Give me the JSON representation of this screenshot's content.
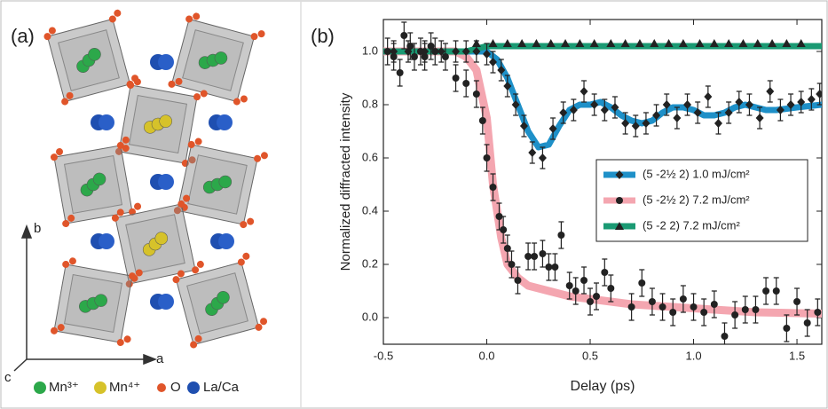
{
  "panel_a": {
    "label": "(a)",
    "axis_b": "b",
    "axis_a": "a",
    "axis_c": "c",
    "legend": [
      "Mn³⁺",
      "Mn⁴⁺",
      "O",
      "La/Ca"
    ]
  },
  "chart_data": {
    "type": "line",
    "panel_label": "(b)",
    "x_label": "Delay (ps)",
    "y_label": "Normalized diffracted intensity",
    "xlim": [
      -0.5,
      1.62
    ],
    "ylim": [
      -0.1,
      1.12
    ],
    "xticks": [
      -0.5,
      {
        "value": 0,
        "label": "0.0"
      },
      0.5,
      {
        "value": 1,
        "label": "1.0"
      },
      1.5
    ],
    "yticks": [
      {
        "value": 0,
        "label": "0.0"
      },
      0.2,
      0.4,
      0.6,
      0.8,
      {
        "value": 1,
        "label": "1.0"
      }
    ],
    "legend": "right",
    "series": [
      {
        "name": "(5 -2½ 2) 1.0 mJ/cm²",
        "color": "#1e90c8",
        "marker": "diamond",
        "x": [
          -0.45,
          -0.38,
          -0.3,
          -0.22,
          -0.15,
          -0.1,
          -0.05,
          0.0,
          0.03,
          0.07,
          0.1,
          0.14,
          0.18,
          0.22,
          0.27,
          0.32,
          0.37,
          0.42,
          0.47,
          0.52,
          0.57,
          0.62,
          0.67,
          0.72,
          0.77,
          0.82,
          0.87,
          0.92,
          0.97,
          1.02,
          1.07,
          1.12,
          1.17,
          1.22,
          1.27,
          1.32,
          1.37,
          1.42,
          1.47,
          1.52,
          1.57,
          1.61
        ],
        "values": [
          1.0,
          1.0,
          1.0,
          1.0,
          1.0,
          1.0,
          1.0,
          0.99,
          0.96,
          0.93,
          0.87,
          0.8,
          0.72,
          0.62,
          0.6,
          0.71,
          0.77,
          0.78,
          0.85,
          0.8,
          0.78,
          0.79,
          0.73,
          0.72,
          0.73,
          0.76,
          0.8,
          0.75,
          0.8,
          0.77,
          0.83,
          0.73,
          0.77,
          0.81,
          0.8,
          0.75,
          0.85,
          0.78,
          0.8,
          0.81,
          0.82,
          0.84
        ],
        "errors": [
          0.04,
          0.04,
          0.04,
          0.04,
          0.04,
          0.04,
          0.04,
          0.04,
          0.04,
          0.04,
          0.04,
          0.04,
          0.04,
          0.04,
          0.04,
          0.04,
          0.04,
          0.04,
          0.04,
          0.04,
          0.04,
          0.04,
          0.04,
          0.04,
          0.04,
          0.04,
          0.04,
          0.04,
          0.04,
          0.04,
          0.04,
          0.04,
          0.04,
          0.04,
          0.04,
          0.04,
          0.04,
          0.04,
          0.04,
          0.04,
          0.04,
          0.04
        ],
        "fit_x": [
          -0.1,
          0,
          0.05,
          0.1,
          0.15,
          0.2,
          0.25,
          0.3,
          0.35,
          0.4,
          0.45,
          0.5,
          0.55,
          0.6,
          0.65,
          0.7,
          0.75,
          0.8,
          0.85,
          0.9,
          0.95,
          1.0,
          1.05,
          1.1,
          1.15,
          1.2,
          1.25,
          1.3,
          1.35,
          1.4,
          1.5,
          1.62
        ],
        "fit_values": [
          1.0,
          1.0,
          0.97,
          0.9,
          0.8,
          0.7,
          0.64,
          0.65,
          0.72,
          0.78,
          0.8,
          0.8,
          0.81,
          0.79,
          0.76,
          0.74,
          0.73,
          0.74,
          0.77,
          0.79,
          0.79,
          0.78,
          0.76,
          0.76,
          0.77,
          0.79,
          0.8,
          0.79,
          0.78,
          0.78,
          0.79,
          0.8
        ]
      },
      {
        "name": "(5 -2½ 2) 7.2 mJ/cm²",
        "color": "#f4a6b0",
        "marker": "circle",
        "x": [
          -0.48,
          -0.45,
          -0.42,
          -0.4,
          -0.37,
          -0.35,
          -0.32,
          -0.3,
          -0.27,
          -0.25,
          -0.2,
          -0.15,
          -0.1,
          -0.05,
          -0.02,
          0.0,
          0.03,
          0.06,
          0.08,
          0.1,
          0.12,
          0.15,
          0.2,
          0.23,
          0.27,
          0.3,
          0.33,
          0.36,
          0.4,
          0.43,
          0.47,
          0.5,
          0.53,
          0.57,
          0.6,
          0.7,
          0.75,
          0.8,
          0.85,
          0.9,
          0.95,
          1.0,
          1.05,
          1.1,
          1.15,
          1.2,
          1.25,
          1.3,
          1.35,
          1.4,
          1.45,
          1.5,
          1.55,
          1.6
        ],
        "values": [
          1.0,
          0.98,
          0.92,
          1.06,
          1.02,
          0.98,
          1.0,
          0.98,
          1.02,
          1.0,
          0.98,
          0.9,
          0.88,
          0.84,
          0.74,
          0.6,
          0.49,
          0.38,
          0.33,
          0.26,
          0.2,
          0.14,
          0.23,
          0.23,
          0.24,
          0.19,
          0.19,
          0.31,
          0.12,
          0.1,
          0.14,
          0.06,
          0.08,
          0.17,
          0.11,
          0.04,
          0.13,
          0.06,
          0.04,
          0.02,
          0.07,
          0.04,
          0.02,
          0.05,
          -0.07,
          0.01,
          0.03,
          0.03,
          0.1,
          0.1,
          -0.04,
          0.06,
          -0.02,
          0.02
        ],
        "errors": [
          0.05,
          0.05,
          0.05,
          0.05,
          0.05,
          0.05,
          0.05,
          0.05,
          0.05,
          0.05,
          0.05,
          0.05,
          0.05,
          0.05,
          0.05,
          0.05,
          0.05,
          0.05,
          0.05,
          0.05,
          0.05,
          0.05,
          0.05,
          0.05,
          0.05,
          0.05,
          0.05,
          0.05,
          0.05,
          0.05,
          0.05,
          0.05,
          0.05,
          0.05,
          0.05,
          0.05,
          0.05,
          0.05,
          0.05,
          0.05,
          0.05,
          0.05,
          0.05,
          0.05,
          0.05,
          0.05,
          0.05,
          0.05,
          0.05,
          0.05,
          0.05,
          0.05,
          0.05,
          0.05
        ],
        "fit_x": [
          -0.5,
          -0.15,
          -0.1,
          -0.05,
          0,
          0.03,
          0.07,
          0.1,
          0.15,
          0.2,
          0.3,
          0.4,
          0.5,
          0.7,
          0.9,
          1.1,
          1.3,
          1.62
        ],
        "fit_values": [
          1.0,
          1.0,
          0.98,
          0.93,
          0.75,
          0.5,
          0.3,
          0.2,
          0.15,
          0.12,
          0.1,
          0.08,
          0.07,
          0.05,
          0.04,
          0.03,
          0.02,
          0.015
        ]
      },
      {
        "name": "(5  -2   2) 7.2 mJ/cm²",
        "color": "#1a9a73",
        "marker": "triangle",
        "x": [
          -0.05,
          0.03,
          0.1,
          0.17,
          0.24,
          0.31,
          0.38,
          0.45,
          0.52,
          0.6,
          0.67,
          0.74,
          0.81,
          0.88,
          0.95,
          1.03,
          1.1,
          1.17,
          1.24,
          1.31,
          1.38,
          1.45,
          1.52
        ],
        "values": [
          1.03,
          1.03,
          1.03,
          1.03,
          1.03,
          1.03,
          1.03,
          1.03,
          1.03,
          1.03,
          1.03,
          1.03,
          1.03,
          1.03,
          1.03,
          1.03,
          1.03,
          1.03,
          1.03,
          1.03,
          1.03,
          1.03,
          1.03
        ],
        "fit_x": [
          -0.5,
          -0.1,
          0,
          1.62
        ],
        "fit_values": [
          1.0,
          1.0,
          1.02,
          1.02
        ]
      }
    ]
  }
}
